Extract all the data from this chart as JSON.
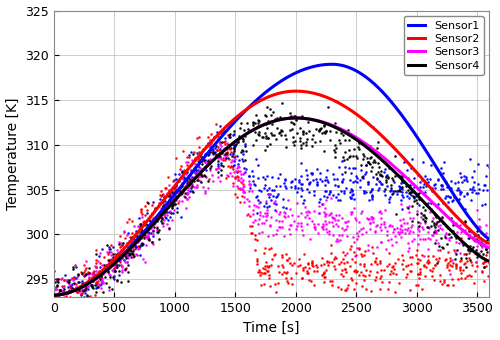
{
  "title": "",
  "xlabel": "Time [s]",
  "ylabel": "Temperature [K]",
  "xlim": [
    0,
    3600
  ],
  "ylim": [
    293,
    325
  ],
  "yticks": [
    295,
    300,
    305,
    310,
    315,
    320,
    325
  ],
  "xticks": [
    0,
    500,
    1000,
    1500,
    2000,
    2500,
    3000,
    3500
  ],
  "sensors": [
    {
      "name": "Sensor1",
      "color": "#0000ff",
      "peak_temp": 319.0,
      "peak_time": 2300,
      "start_temp": 293.2,
      "end_temp": 299.5,
      "dot_peak_temp": 305.5,
      "dot_peak_time": 2200,
      "dot_end_temp": 305.5,
      "dot_noise": 1.2,
      "dot_start": 0
    },
    {
      "name": "Sensor2",
      "color": "#ff0000",
      "peak_temp": 316.0,
      "peak_time": 2000,
      "start_temp": 293.2,
      "end_temp": 299.0,
      "dot_peak_temp": 296.0,
      "dot_peak_time": 1700,
      "dot_end_temp": 296.5,
      "dot_noise": 1.2,
      "dot_start": 0
    },
    {
      "name": "Sensor3",
      "color": "#ff00ff",
      "peak_temp": 313.0,
      "peak_time": 2000,
      "start_temp": 293.2,
      "end_temp": 298.5,
      "dot_peak_temp": 301.5,
      "dot_peak_time": 1800,
      "dot_end_temp": 299.5,
      "dot_noise": 1.2,
      "dot_start": 0
    },
    {
      "name": "Sensor4",
      "color": "#000000",
      "peak_temp": 313.0,
      "peak_time": 2000,
      "start_temp": 293.2,
      "end_temp": 297.0,
      "dot_peak_temp": 312.0,
      "dot_peak_time": 1950,
      "dot_end_temp": 297.5,
      "dot_noise": 1.2,
      "dot_start": 0
    }
  ],
  "legend_loc": "upper right",
  "grid": true,
  "background_color": "#ffffff",
  "linewidth": 2.2,
  "seed": 12345
}
